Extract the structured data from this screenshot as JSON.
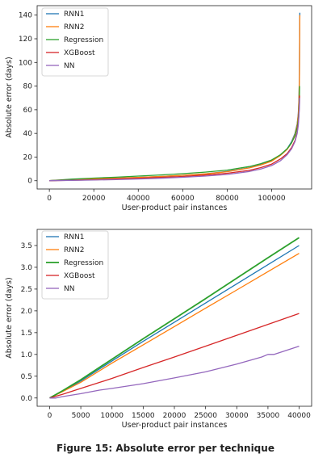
{
  "caption": "Figure 15: Absolute error per technique",
  "chart_data": [
    {
      "type": "line",
      "xlabel": "User-product pair instances",
      "ylabel": "Absolute error (days)",
      "xlim": [
        -5500,
        118000
      ],
      "ylim": [
        -7,
        148
      ],
      "xticks": [
        0,
        20000,
        40000,
        60000,
        80000,
        100000
      ],
      "yticks": [
        0,
        20,
        40,
        60,
        80,
        100,
        120,
        140
      ],
      "legend": "top-left",
      "grid": false,
      "series": [
        {
          "name": "RNN1",
          "color": "#1f77b4",
          "x": [
            0,
            10000,
            20000,
            30000,
            40000,
            50000,
            60000,
            70000,
            80000,
            90000,
            95000,
            100000,
            104000,
            107000,
            109000,
            110500,
            111500,
            112000,
            112300,
            112500,
            112600,
            112700
          ],
          "y": [
            0,
            0.7,
            1.4,
            2.1,
            2.8,
            3.6,
            4.6,
            5.8,
            7.8,
            11,
            13.5,
            17,
            22,
            27,
            33,
            40,
            48,
            57,
            70,
            90,
            115,
            142
          ]
        },
        {
          "name": "RNN2",
          "color": "#ff7f0e",
          "x": [
            0,
            10000,
            20000,
            30000,
            40000,
            50000,
            60000,
            70000,
            80000,
            90000,
            95000,
            100000,
            104000,
            107000,
            109000,
            110500,
            111500,
            112000,
            112300,
            112500,
            112600,
            112700
          ],
          "y": [
            0,
            0.7,
            1.4,
            2.1,
            2.8,
            3.6,
            4.6,
            5.8,
            7.6,
            10.8,
            13.2,
            16.5,
            21.5,
            26.5,
            32,
            39,
            47,
            56,
            68,
            88,
            112,
            140
          ]
        },
        {
          "name": "Regression",
          "color": "#2ca02c",
          "x": [
            0,
            10000,
            20000,
            30000,
            40000,
            50000,
            60000,
            70000,
            80000,
            90000,
            95000,
            100000,
            104000,
            107000,
            109000,
            110500,
            111500,
            112000,
            112300,
            112500,
            112600
          ],
          "y": [
            0,
            1.3,
            2.2,
            3,
            3.9,
            4.9,
            6,
            7.3,
            9,
            12,
            14.3,
            17.5,
            22,
            27,
            32,
            38,
            45,
            52,
            60,
            70,
            80
          ]
        },
        {
          "name": "XGBoost",
          "color": "#d62728",
          "x": [
            0,
            10000,
            20000,
            30000,
            40000,
            50000,
            60000,
            70000,
            80000,
            90000,
            95000,
            100000,
            104000,
            107000,
            109000,
            110500,
            111500,
            112000,
            112300,
            112500,
            112600
          ],
          "y": [
            0,
            0.4,
            0.8,
            1.4,
            2,
            2.8,
            3.6,
            4.8,
            6.3,
            8.8,
            11,
            14,
            18.5,
            23,
            28,
            34,
            41,
            49,
            57,
            65,
            72
          ]
        },
        {
          "name": "NN",
          "color": "#9467bd",
          "x": [
            0,
            10000,
            20000,
            30000,
            40000,
            50000,
            60000,
            70000,
            80000,
            90000,
            95000,
            100000,
            104000,
            107000,
            109000,
            110500,
            111500,
            112000,
            112300,
            112500,
            112600
          ],
          "y": [
            0,
            0.3,
            0.6,
            1,
            1.5,
            2.1,
            2.9,
            3.9,
            5.3,
            7.8,
            9.8,
            12.8,
            17,
            22,
            27,
            33,
            40,
            47,
            55,
            63,
            70
          ]
        }
      ]
    },
    {
      "type": "line",
      "xlabel": "User-product pair instances",
      "ylabel": "Absolute error (days)",
      "xlim": [
        -2000,
        42000
      ],
      "ylim": [
        -0.19,
        3.87
      ],
      "xticks": [
        0,
        5000,
        10000,
        15000,
        20000,
        25000,
        30000,
        35000,
        40000
      ],
      "yticks": [
        0.0,
        0.5,
        1.0,
        1.5,
        2.0,
        2.5,
        3.0,
        3.5
      ],
      "legend": "top-left",
      "grid": false,
      "series": [
        {
          "name": "RNN1",
          "color": "#1f77b4",
          "x": [
            0,
            2000,
            5000,
            10000,
            15000,
            20000,
            25000,
            30000,
            35000,
            40000
          ],
          "y": [
            0,
            0.15,
            0.39,
            0.85,
            1.3,
            1.74,
            2.18,
            2.62,
            3.06,
            3.5
          ]
        },
        {
          "name": "RNN2",
          "color": "#ff7f0e",
          "x": [
            0,
            2000,
            5000,
            10000,
            15000,
            20000,
            25000,
            30000,
            35000,
            40000
          ],
          "y": [
            0,
            0.14,
            0.36,
            0.8,
            1.22,
            1.64,
            2.06,
            2.48,
            2.9,
            3.32
          ]
        },
        {
          "name": "Regression",
          "color": "#2ca02c",
          "x": [
            0,
            2000,
            5000,
            10000,
            15000,
            20000,
            25000,
            30000,
            35000,
            40000
          ],
          "y": [
            0,
            0.16,
            0.42,
            0.89,
            1.36,
            1.82,
            2.28,
            2.75,
            3.22,
            3.68
          ]
        },
        {
          "name": "XGBoost",
          "color": "#d62728",
          "x": [
            0,
            2000,
            5000,
            10000,
            15000,
            20000,
            25000,
            30000,
            35000,
            40000
          ],
          "y": [
            0,
            0.08,
            0.22,
            0.45,
            0.7,
            0.94,
            1.19,
            1.44,
            1.69,
            1.94
          ]
        },
        {
          "name": "NN",
          "color": "#9467bd",
          "x": [
            0,
            1000,
            2000,
            5000,
            8000,
            10000,
            15000,
            20000,
            25000,
            30000,
            34000,
            35000,
            36000,
            40000
          ],
          "y": [
            0,
            0,
            0.03,
            0.1,
            0.18,
            0.22,
            0.33,
            0.46,
            0.6,
            0.78,
            0.94,
            1.0,
            1.0,
            1.19
          ]
        }
      ]
    }
  ]
}
